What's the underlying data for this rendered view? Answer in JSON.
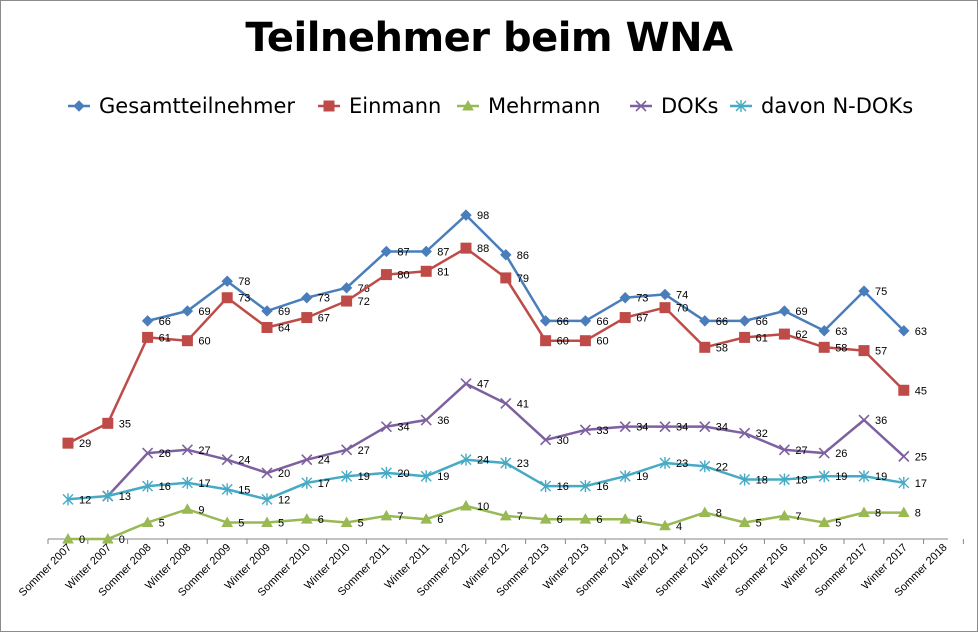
{
  "chart_data": {
    "type": "line",
    "title": "Teilnehmer beim WNA",
    "xlabel": "",
    "ylabel": "",
    "ylim": [
      0,
      110
    ],
    "grid": false,
    "legend_position": "top",
    "categories": [
      "Sommer 2007",
      "Winter 2007",
      "Sommer 2008",
      "Winter 2008",
      "Sommer 2009",
      "Winter 2009",
      "Sommer 2010",
      "Winter 2010",
      "Sommer 2011",
      "Winter 2011",
      "Sommer 2012",
      "Winter 2012",
      "Sommer 2013",
      "Winter 2013",
      "Sommer 2014",
      "Winter 2014",
      "Sommer 2015",
      "Winter 2015",
      "Sommer 2016",
      "Winter 2016",
      "Sommer 2017",
      "Winter 2017",
      "Sommer 2018"
    ],
    "series": [
      {
        "name": "Gesamtteilnehmer",
        "color": "#4a7ebb",
        "marker": "diamond",
        "values": [
          null,
          null,
          66,
          69,
          78,
          69,
          73,
          76,
          87,
          87,
          98,
          86,
          66,
          66,
          73,
          74,
          66,
          66,
          69,
          63,
          75,
          63,
          null
        ],
        "labels_shown": [
          false,
          false,
          true,
          true,
          true,
          true,
          true,
          true,
          true,
          true,
          true,
          true,
          true,
          true,
          true,
          true,
          true,
          true,
          true,
          true,
          true,
          true,
          false
        ]
      },
      {
        "name": "Einmann",
        "color": "#be4b48",
        "marker": "square",
        "values": [
          29,
          35,
          61,
          60,
          73,
          64,
          67,
          72,
          80,
          81,
          88,
          79,
          60,
          60,
          67,
          70,
          58,
          61,
          62,
          58,
          57,
          45,
          null
        ],
        "labels_shown": [
          true,
          true,
          true,
          true,
          true,
          true,
          true,
          true,
          true,
          true,
          true,
          true,
          true,
          true,
          true,
          true,
          true,
          true,
          true,
          true,
          true,
          true,
          false
        ]
      },
      {
        "name": "Mehrmann",
        "color": "#98b954",
        "marker": "triangle",
        "values": [
          0,
          0,
          5,
          9,
          5,
          5,
          6,
          5,
          7,
          6,
          10,
          7,
          6,
          6,
          6,
          4,
          8,
          5,
          7,
          5,
          8,
          8,
          null
        ],
        "labels_shown": [
          true,
          true,
          true,
          true,
          true,
          true,
          true,
          true,
          true,
          true,
          true,
          true,
          true,
          true,
          true,
          true,
          true,
          true,
          true,
          true,
          true,
          true,
          false
        ]
      },
      {
        "name": "DOKs",
        "color": "#7d60a0",
        "marker": "x",
        "values": [
          null,
          13,
          26,
          27,
          24,
          20,
          24,
          27,
          34,
          36,
          47,
          41,
          30,
          33,
          34,
          34,
          34,
          32,
          27,
          26,
          36,
          25,
          null
        ],
        "labels_shown": [
          false,
          false,
          true,
          true,
          true,
          true,
          true,
          true,
          true,
          true,
          true,
          true,
          true,
          true,
          true,
          true,
          true,
          true,
          true,
          true,
          true,
          true,
          false
        ]
      },
      {
        "name": "davon N-DOKs",
        "color": "#46aac5",
        "marker": "star",
        "values": [
          12,
          13,
          16,
          17,
          15,
          12,
          17,
          19,
          20,
          19,
          24,
          23,
          16,
          16,
          19,
          23,
          22,
          18,
          18,
          19,
          19,
          17,
          null
        ],
        "labels_shown": [
          true,
          true,
          true,
          true,
          true,
          true,
          true,
          true,
          true,
          true,
          true,
          true,
          true,
          true,
          true,
          true,
          true,
          true,
          true,
          true,
          true,
          true,
          false
        ]
      }
    ]
  }
}
